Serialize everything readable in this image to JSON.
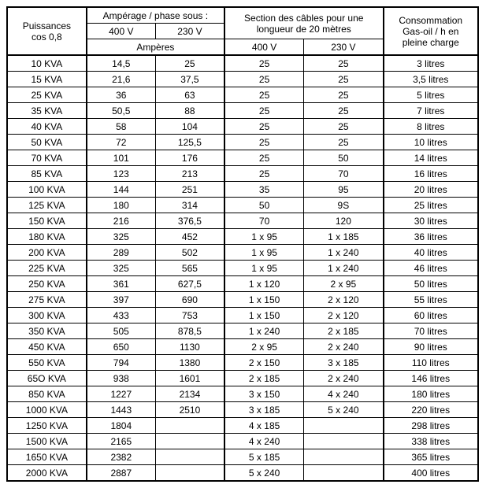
{
  "header": {
    "puissances_line1": "Puissances",
    "puissances_line2": "cos 0,8",
    "amperage_title": "Ampérage / phase sous :",
    "amperes_sub": "Ampères",
    "section_title": "Section des câbles pour une longueur de 20 mètres",
    "conso_line1": "Consommation",
    "conso_line2": "Gas-oil / h en",
    "conso_line3": "pleine charge",
    "v400": "400 V",
    "v230": "230 V"
  },
  "rows": [
    {
      "p": "10 KVA",
      "a400": "14,5",
      "a230": "25",
      "s400": "25",
      "s230": "25",
      "c": "3 litres"
    },
    {
      "p": "15 KVA",
      "a400": "21,6",
      "a230": "37,5",
      "s400": "25",
      "s230": "25",
      "c": "3,5 litres"
    },
    {
      "p": "25 KVA",
      "a400": "36",
      "a230": "63",
      "s400": "25",
      "s230": "25",
      "c": "5 litres"
    },
    {
      "p": "35 KVA",
      "a400": "50,5",
      "a230": "88",
      "s400": "25",
      "s230": "25",
      "c": "7 litres"
    },
    {
      "p": "40 KVA",
      "a400": "58",
      "a230": "104",
      "s400": "25",
      "s230": "25",
      "c": "8 litres"
    },
    {
      "p": "50 KVA",
      "a400": "72",
      "a230": "125,5",
      "s400": "25",
      "s230": "25",
      "c": "10 litres"
    },
    {
      "p": "70 KVA",
      "a400": "101",
      "a230": "176",
      "s400": "25",
      "s230": "50",
      "c": "14 litres"
    },
    {
      "p": "85 KVA",
      "a400": "123",
      "a230": "213",
      "s400": "25",
      "s230": "70",
      "c": "16 litres"
    },
    {
      "p": "100 KVA",
      "a400": "144",
      "a230": "251",
      "s400": "35",
      "s230": "95",
      "c": "20 litres"
    },
    {
      "p": "125 KVA",
      "a400": "180",
      "a230": "314",
      "s400": "50",
      "s230": "9S",
      "c": "25 litres"
    },
    {
      "p": "150 KVA",
      "a400": "216",
      "a230": "376,5",
      "s400": "70",
      "s230": "120",
      "c": "30 litres"
    },
    {
      "p": "180 KVA",
      "a400": "325",
      "a230": "452",
      "s400": "1 x 95",
      "s230": "1 x 185",
      "c": "36 litres"
    },
    {
      "p": "200 KVA",
      "a400": "289",
      "a230": "502",
      "s400": "1 x 95",
      "s230": "1 x 240",
      "c": "40 litres"
    },
    {
      "p": "225 KVA",
      "a400": "325",
      "a230": "565",
      "s400": "1 x 95",
      "s230": "1 x 240",
      "c": "46 litres"
    },
    {
      "p": "250 KVA",
      "a400": "361",
      "a230": "627,5",
      "s400": "1 x 120",
      "s230": "2 x 95",
      "c": "50 litres"
    },
    {
      "p": "275 KVA",
      "a400": "397",
      "a230": "690",
      "s400": "1 x 150",
      "s230": "2 x 120",
      "c": "55 litres"
    },
    {
      "p": "300 KVA",
      "a400": "433",
      "a230": "753",
      "s400": "1 x 150",
      "s230": "2 x 120",
      "c": "60 litres"
    },
    {
      "p": "350 KVA",
      "a400": "505",
      "a230": "878,5",
      "s400": "1 x 240",
      "s230": "2 x 185",
      "c": "70 litres"
    },
    {
      "p": "450 KVA",
      "a400": "650",
      "a230": "1130",
      "s400": "2 x 95",
      "s230": "2 x 240",
      "c": "90 litres"
    },
    {
      "p": "550 KVA",
      "a400": "794",
      "a230": "1380",
      "s400": "2 x 150",
      "s230": "3 x 185",
      "c": "110 litres"
    },
    {
      "p": "65O KVA",
      "a400": "938",
      "a230": "1601",
      "s400": "2 x 185",
      "s230": "2 x 240",
      "c": "146 litres"
    },
    {
      "p": "850 KVA",
      "a400": "1227",
      "a230": "2134",
      "s400": "3 x 150",
      "s230": "4 x 240",
      "c": "180 litres"
    },
    {
      "p": "1000 KVA",
      "a400": "1443",
      "a230": "2510",
      "s400": "3 x 185",
      "s230": "5 x 240",
      "c": "220 litres"
    },
    {
      "p": "1250 KVA",
      "a400": "1804",
      "a230": "",
      "s400": "4 x 185",
      "s230": "",
      "c": "298 litres"
    },
    {
      "p": "1500 KVA",
      "a400": "2165",
      "a230": "",
      "s400": "4 x 240",
      "s230": "",
      "c": "338 litres"
    },
    {
      "p": "1650 KVA",
      "a400": "2382",
      "a230": "",
      "s400": "5 x 185",
      "s230": "",
      "c": "365 litres"
    },
    {
      "p": "2000 KVA",
      "a400": "2887",
      "a230": "",
      "s400": "5 x 240",
      "s230": "",
      "c": "400 litres"
    }
  ]
}
